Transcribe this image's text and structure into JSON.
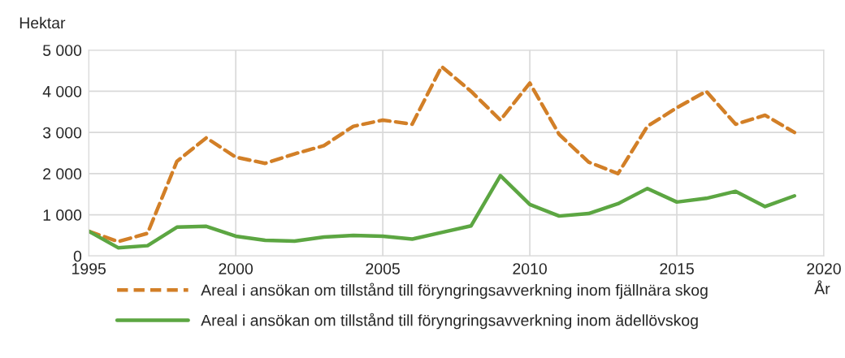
{
  "chart_data": {
    "type": "line",
    "ylabel": "Hektar",
    "xlabel": "År",
    "x": [
      1995,
      1996,
      1997,
      1998,
      1999,
      2000,
      2001,
      2002,
      2003,
      2004,
      2005,
      2006,
      2007,
      2008,
      2009,
      2010,
      2011,
      2012,
      2013,
      2014,
      2015,
      2016,
      2017,
      2018,
      2019
    ],
    "series": [
      {
        "name": "Areal i ansökan om tillstånd till föryngringsavverkning inom fjällnära skog",
        "color": "#d27f27",
        "line_style": "dashed",
        "values": [
          600,
          350,
          550,
          2300,
          2870,
          2400,
          2250,
          2480,
          2680,
          3150,
          3300,
          3200,
          4600,
          4000,
          3300,
          4200,
          2950,
          2280,
          2000,
          3150,
          3600,
          4000,
          3200,
          3420,
          3000
        ]
      },
      {
        "name": "Areal i ansökan om tillstånd till föryngringsavverkning inom ädellövskog",
        "color": "#5ca642",
        "line_style": "solid",
        "values": [
          600,
          200,
          250,
          700,
          720,
          480,
          380,
          360,
          460,
          500,
          480,
          410,
          570,
          730,
          1950,
          1250,
          970,
          1030,
          1270,
          1640,
          1310,
          1400,
          1570,
          1200,
          1460
        ]
      }
    ],
    "xlim": [
      1995,
      2020
    ],
    "xticks": [
      1995,
      2000,
      2005,
      2010,
      2015,
      2020
    ],
    "ylim": [
      0,
      5000
    ],
    "yticks": [
      0,
      {
        "value": 1000,
        "label": "1 000"
      },
      {
        "value": 2000,
        "label": "2 000"
      },
      {
        "value": 3000,
        "label": "3 000"
      },
      {
        "value": 4000,
        "label": "4 000"
      },
      {
        "value": 5000,
        "label": "5 000"
      }
    ],
    "grid": true,
    "legend": "bottom"
  }
}
